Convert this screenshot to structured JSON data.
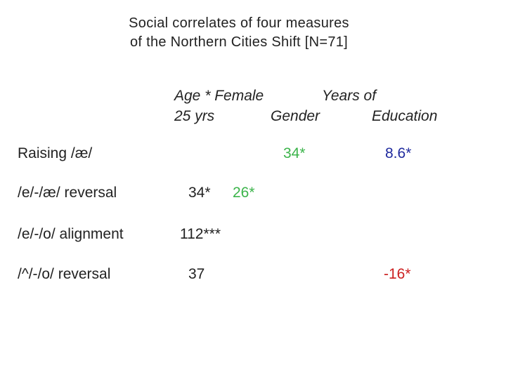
{
  "title": {
    "line1": "Social correlates of four measures",
    "line2": "of the Northern Cities Shift [N=71]"
  },
  "columns": {
    "age_line1": "Age * Female",
    "age_line2": "25 yrs",
    "gender": "Gender",
    "education_line1": "Years of",
    "education_line2": "Education"
  },
  "rows": [
    {
      "label": "Raising /æ/",
      "age_female": "",
      "gender": "34*",
      "education": "8.6*"
    },
    {
      "label": "/e/-/æ/ reversal",
      "age_female": "34*",
      "gender": "26*",
      "education": ""
    },
    {
      "label": "/e/-/o/ alignment",
      "age_female": "112***",
      "gender": "",
      "education": ""
    },
    {
      "label": "/^/-/o/ reversal",
      "age_female": "37",
      "gender": "",
      "education": "-16*"
    }
  ],
  "colors": {
    "text": "#222222",
    "gender": "#3cb44b",
    "education": "#1f2a9e",
    "negative_education": "#cc1f1f"
  }
}
